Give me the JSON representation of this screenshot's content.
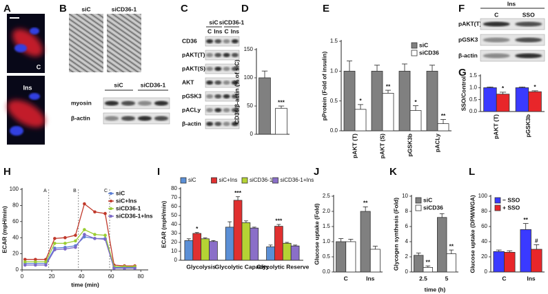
{
  "panels": {
    "A": {
      "label": "A",
      "images": [
        "C",
        "Ins"
      ]
    },
    "B": {
      "label": "B",
      "image_headers": [
        "siC",
        "siCD36-1"
      ],
      "blot_headers": [
        "siC",
        "siCD36-1"
      ],
      "rows": [
        "myosin",
        "β-actin"
      ]
    },
    "C": {
      "label": "C",
      "headers": [
        "siC",
        "siCD36-1"
      ],
      "lanes": [
        "C",
        "Ins",
        "C",
        "Ins"
      ],
      "rows": [
        "CD36",
        "pAKT(T)",
        "pAKT(S)",
        "AKT",
        "pGSK3",
        "pACLy",
        "β-actin"
      ]
    },
    "F": {
      "label": "F",
      "header": "Ins",
      "lanes": [
        "C",
        "SSO"
      ],
      "rows": [
        "pAKT(T)",
        "pGSK3",
        "β-actin"
      ]
    }
  },
  "chart_data": [
    {
      "panel": "D",
      "type": "bar",
      "y_label": "CD36/β-actin (% of siC)",
      "categories": [
        null,
        null
      ],
      "values": [
        100,
        46
      ],
      "errors": [
        12,
        4
      ],
      "colors": [
        "#808080",
        "#ffffff"
      ],
      "annotations": [
        null,
        "***"
      ],
      "ylim": [
        0,
        150
      ],
      "yticks": [
        0,
        50,
        100,
        150
      ]
    },
    {
      "panel": "E",
      "type": "bar",
      "y_label": "pProtein (Fold of insulin)",
      "categories": [
        "pAKT (T)",
        "pAKT (S)",
        "pGSK3b",
        "pACLy"
      ],
      "label_rotation": 90,
      "series": [
        {
          "name": "siC",
          "color": "#808080",
          "values": [
            1,
            1,
            1,
            1
          ],
          "errors": [
            0.17,
            0.1,
            0.12,
            0.1
          ]
        },
        {
          "name": "siCD36",
          "color": "#ffffff",
          "values": [
            0.36,
            0.63,
            0.34,
            0.12
          ],
          "errors": [
            0.08,
            0.05,
            0.08,
            0.07
          ],
          "annotations": [
            "*",
            "**",
            "*",
            "**"
          ]
        }
      ],
      "ylim": [
        0,
        1.5
      ],
      "yticks": [
        {
          "value": 0,
          "label": "0.0"
        },
        0.5,
        {
          "value": 1,
          "label": "1.0"
        },
        1.5
      ],
      "legend": "upper right"
    },
    {
      "panel": "G",
      "type": "bar",
      "y_label": "SSO/Control",
      "categories": [
        "pAKT (T)",
        "pGSK3b"
      ],
      "label_rotation": 90,
      "series": [
        {
          "color": "#3a3aff",
          "values": [
            1,
            1
          ],
          "errors": [
            0.03,
            0.03
          ]
        },
        {
          "color": "#e8262a",
          "values": [
            0.73,
            0.83
          ],
          "errors": [
            0.08,
            0.04
          ],
          "annotations": [
            "*",
            "*"
          ]
        }
      ],
      "ylim": [
        0,
        1.5
      ],
      "yticks": [
        {
          "value": 0,
          "label": "0.0"
        },
        0.5,
        {
          "value": 1,
          "label": "1.0"
        },
        1.5
      ]
    },
    {
      "panel": "H",
      "type": "line",
      "y_label": "ECAR (mpH/min)",
      "x_label": "time (min)",
      "x": [
        2,
        9,
        16,
        22,
        29,
        36,
        42,
        49,
        56,
        62,
        69,
        76
      ],
      "series": [
        {
          "name": "siC",
          "color": "#5b7fd6",
          "values": [
            8,
            8,
            8,
            27,
            28,
            30,
            41,
            39,
            39,
            3,
            3,
            3
          ]
        },
        {
          "name": "siC+Ins",
          "color": "#c0392b",
          "values": [
            13,
            13,
            13,
            39,
            40,
            43,
            82,
            72,
            70,
            6,
            5,
            5
          ]
        },
        {
          "name": "siCD36-1",
          "color": "#9acd32",
          "values": [
            10,
            10,
            10,
            33,
            33,
            36,
            50,
            44,
            43,
            4,
            4,
            4
          ]
        },
        {
          "name": "siCD36-1+Ins",
          "color": "#7b68c8",
          "values": [
            6,
            6,
            6,
            25,
            26,
            28,
            44,
            39,
            38,
            2,
            2,
            2
          ]
        }
      ],
      "xlim": [
        0,
        85
      ],
      "xticks": [
        0,
        20,
        40,
        60,
        80
      ],
      "ylim": [
        0,
        100
      ],
      "yticks": [
        0,
        20,
        40,
        60,
        80,
        100
      ],
      "markers": [
        {
          "x": 18,
          "label": "A"
        },
        {
          "x": 38,
          "label": "B"
        },
        {
          "x": 59,
          "label": "C"
        }
      ],
      "legend": "upper right"
    },
    {
      "panel": "I",
      "type": "bar",
      "y_label": "ECAR (mpH/min)",
      "categories": [
        "Glycolysis",
        "Glycolytic Capacity",
        "Glycolytic Reserve"
      ],
      "series": [
        {
          "name": "siC",
          "color": "#5b8fd6",
          "values": [
            22,
            37,
            15
          ],
          "errors": [
            2,
            6,
            2
          ]
        },
        {
          "name": "siC+Ins",
          "color": "#e03030",
          "values": [
            30,
            67,
            38
          ],
          "errors": [
            1,
            4,
            2
          ],
          "annotations": [
            "*",
            "***",
            "***"
          ]
        },
        {
          "name": "siCD36-1",
          "color": "#b5d334",
          "values": [
            24,
            42,
            19
          ],
          "errors": [
            1,
            2,
            1
          ]
        },
        {
          "name": "siCD36-1+Ins",
          "color": "#8a6fc8",
          "values": [
            21,
            36,
            16
          ],
          "errors": [
            1,
            1,
            1
          ]
        }
      ],
      "ylim": [
        0,
        80
      ],
      "yticks": [
        0,
        10,
        20,
        30,
        40,
        50,
        60,
        70,
        80
      ],
      "legend": "top"
    },
    {
      "panel": "J",
      "type": "bar",
      "y_label": "Glucose uptake (Fold)",
      "categories": [
        "C",
        "Ins"
      ],
      "series": [
        {
          "color": "#808080",
          "values": [
            1,
            2
          ],
          "errors": [
            0.1,
            0.15
          ],
          "annotations": [
            null,
            "**"
          ]
        },
        {
          "color": "#ffffff",
          "values": [
            1,
            0.75
          ],
          "errors": [
            0.08,
            0.1
          ]
        }
      ],
      "ylim": [
        0,
        2.5
      ],
      "yticks": [
        {
          "value": 0,
          "label": "0.0"
        },
        0.5,
        {
          "value": 1,
          "label": "1.0"
        },
        1.5,
        {
          "value": 2,
          "label": "2.0"
        },
        2.5
      ]
    },
    {
      "panel": "K",
      "type": "bar",
      "y_label": "Glycogen synthesis (Fold)",
      "x_label": "time (h)",
      "categories": [
        "2.5",
        "5"
      ],
      "series": [
        {
          "name": "siC",
          "color": "#808080",
          "values": [
            2.2,
            7.2
          ],
          "errors": [
            0.3,
            0.5
          ]
        },
        {
          "name": "siCD36",
          "color": "#ffffff",
          "values": [
            0.6,
            2.4
          ],
          "errors": [
            0.2,
            0.5
          ],
          "annotations": [
            "**",
            "**"
          ]
        }
      ],
      "ylim": [
        0,
        10
      ],
      "yticks": [
        0,
        2,
        4,
        6,
        8,
        10
      ],
      "legend": "upper left"
    },
    {
      "panel": "L",
      "type": "bar",
      "y_label": "Glucose uptake (DPM/WGA)",
      "categories": [
        "C",
        "Ins"
      ],
      "series": [
        {
          "name": "− SSO",
          "color": "#3a3aff",
          "values": [
            27,
            56
          ],
          "errors": [
            2,
            8
          ],
          "annotations": [
            null,
            "**"
          ]
        },
        {
          "name": "+ SSO",
          "color": "#e8262a",
          "values": [
            26,
            30
          ],
          "errors": [
            2,
            6
          ],
          "annotations": [
            null,
            "#"
          ]
        }
      ],
      "ylim": [
        0,
        100
      ],
      "yticks": [
        0,
        20,
        40,
        60,
        80,
        100
      ],
      "legend": "upper left"
    }
  ]
}
